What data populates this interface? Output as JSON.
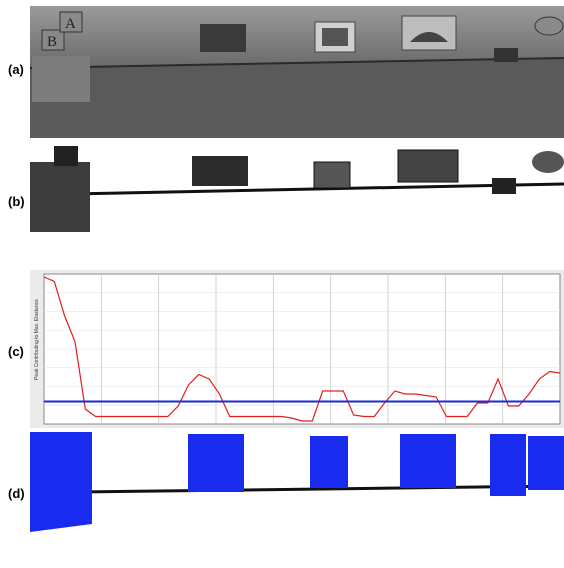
{
  "labels": {
    "a": "(a)",
    "b": "(b)",
    "c": "(c)",
    "d": "(d)"
  },
  "panel_a": {
    "box_letters": [
      "A",
      "B"
    ]
  },
  "colors": {
    "signal": "#e02020",
    "threshold": "#1a2bd6",
    "detection": "#1a2bf0"
  },
  "chart_data": {
    "type": "line",
    "ylabel": "Peak Contributing to Max. Elastance",
    "x": [
      0,
      2,
      4,
      6,
      8,
      10,
      12,
      14,
      16,
      18,
      20,
      22,
      24,
      26,
      28,
      30,
      32,
      34,
      36,
      38,
      40,
      42,
      44,
      46,
      48,
      50,
      52,
      54,
      56,
      58,
      60,
      62,
      64,
      66,
      68,
      70,
      72,
      74,
      76,
      78,
      80,
      82,
      84,
      86,
      88,
      90,
      92,
      94,
      96,
      98,
      100
    ],
    "series": [
      {
        "values": [
          0.98,
          0.95,
          0.72,
          0.55,
          0.1,
          0.05,
          0.05,
          0.05,
          0.05,
          0.05,
          0.05,
          0.05,
          0.05,
          0.12,
          0.26,
          0.33,
          0.3,
          0.2,
          0.05,
          0.05,
          0.05,
          0.05,
          0.05,
          0.05,
          0.04,
          0.02,
          0.02,
          0.22,
          0.22,
          0.22,
          0.06,
          0.05,
          0.05,
          0.14,
          0.22,
          0.2,
          0.2,
          0.19,
          0.18,
          0.05,
          0.05,
          0.05,
          0.14,
          0.14,
          0.3,
          0.12,
          0.12,
          0.2,
          0.3,
          0.35,
          0.34
        ]
      },
      {
        "values": [
          0.15,
          0.15,
          0.15,
          0.15,
          0.15,
          0.15,
          0.15,
          0.15,
          0.15,
          0.15,
          0.15,
          0.15,
          0.15,
          0.15,
          0.15,
          0.15,
          0.15,
          0.15,
          0.15,
          0.15,
          0.15,
          0.15,
          0.15,
          0.15,
          0.15,
          0.15,
          0.15,
          0.15,
          0.15,
          0.15,
          0.15,
          0.15,
          0.15,
          0.15,
          0.15,
          0.15,
          0.15,
          0.15,
          0.15,
          0.15,
          0.15,
          0.15,
          0.15,
          0.15,
          0.15,
          0.15,
          0.15,
          0.15,
          0.15,
          0.15,
          0.15
        ]
      }
    ],
    "ylim": [
      0,
      1
    ],
    "xlim": [
      0,
      100
    ],
    "grid": true
  }
}
